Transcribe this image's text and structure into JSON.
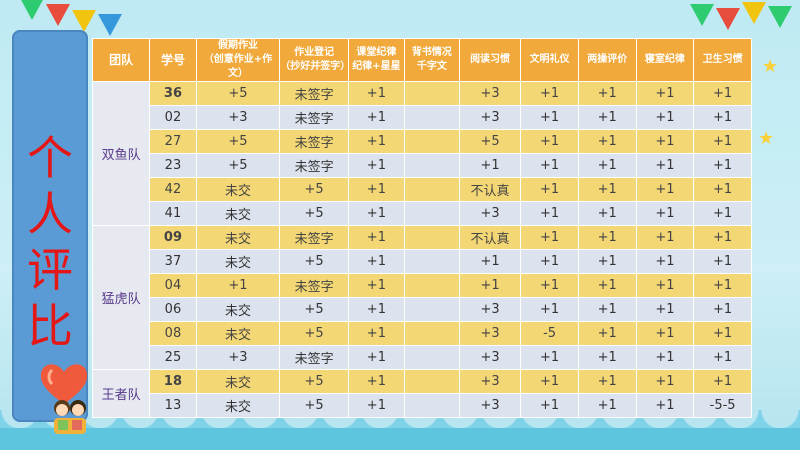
{
  "side_title": [
    "个",
    "人",
    "评",
    "比"
  ],
  "table": {
    "headers": [
      {
        "main": "团队",
        "sub": ""
      },
      {
        "main": "学号",
        "sub": ""
      },
      {
        "main": "假期作业",
        "sub": "（创意作业+作文）"
      },
      {
        "main": "作业登记",
        "sub": "（抄好并签字）"
      },
      {
        "main": "课堂纪律",
        "sub": "纪律+星星"
      },
      {
        "main": "背书情况",
        "sub": "千字文"
      },
      {
        "main": "阅读习惯",
        "sub": ""
      },
      {
        "main": "文明礼仪",
        "sub": ""
      },
      {
        "main": "两操评价",
        "sub": ""
      },
      {
        "main": "寝室纪律",
        "sub": ""
      },
      {
        "main": "卫生习惯",
        "sub": ""
      }
    ],
    "teams": [
      "双鱼队",
      "猛虎队",
      "王者队"
    ],
    "rows": [
      {
        "id": "36",
        "red": true,
        "cells": [
          "+5",
          "未签字",
          "+1",
          "",
          "+3",
          "+1",
          "+1",
          "+1",
          "+1"
        ]
      },
      {
        "id": "02",
        "red": false,
        "cells": [
          "+3",
          "未签字",
          "+1",
          "",
          "+3",
          "+1",
          "+1",
          "+1",
          "+1"
        ]
      },
      {
        "id": "27",
        "red": false,
        "cells": [
          "+5",
          "未签字",
          "+1",
          "",
          "+5",
          "+1",
          "+1",
          "+1",
          "+1"
        ]
      },
      {
        "id": "23",
        "red": false,
        "cells": [
          "+5",
          "未签字",
          "+1",
          "",
          "+1",
          "+1",
          "+1",
          "+1",
          "+1"
        ]
      },
      {
        "id": "42",
        "red": false,
        "cells": [
          "未交",
          "+5",
          "+1",
          "",
          "不认真",
          "+1",
          "+1",
          "+1",
          "+1"
        ]
      },
      {
        "id": "41",
        "red": false,
        "cells": [
          "未交",
          "+5",
          "+1",
          "",
          "+3",
          "+1",
          "+1",
          "+1",
          "+1"
        ]
      },
      {
        "id": "09",
        "red": true,
        "cells": [
          "未交",
          "未签字",
          "+1",
          "",
          "不认真",
          "+1",
          "+1",
          "+1",
          "+1"
        ]
      },
      {
        "id": "37",
        "red": false,
        "cells": [
          "未交",
          "+5",
          "+1",
          "",
          "+1",
          "+1",
          "+1",
          "+1",
          "+1"
        ]
      },
      {
        "id": "04",
        "red": false,
        "cells": [
          "+1",
          "未签字",
          "+1",
          "",
          "+1",
          "+1",
          "+1",
          "+1",
          "+1"
        ]
      },
      {
        "id": "06",
        "red": false,
        "cells": [
          "未交",
          "+5",
          "+1",
          "",
          "+3",
          "+1",
          "+1",
          "+1",
          "+1"
        ]
      },
      {
        "id": "08",
        "red": false,
        "cells": [
          "未交",
          "+5",
          "+1",
          "",
          "+3",
          "-5",
          "+1",
          "+1",
          "+1"
        ]
      },
      {
        "id": "25",
        "red": false,
        "cells": [
          "+3",
          "未签字",
          "+1",
          "",
          "+3",
          "+1",
          "+1",
          "+1",
          "+1"
        ]
      },
      {
        "id": "18",
        "red": true,
        "cells": [
          "未交",
          "+5",
          "+1",
          "",
          "+3",
          "+1",
          "+1",
          "+1",
          "+1"
        ]
      },
      {
        "id": "13",
        "red": false,
        "cells": [
          "未交",
          "+5",
          "+1",
          "",
          "+3",
          "+1",
          "+1",
          "+1",
          "-5-5"
        ]
      }
    ]
  },
  "colors": {
    "header": "#f0a93a",
    "row_yellow": "#f4d775",
    "row_gray": "#dde3ee",
    "side_panel": "#5b9bd5",
    "title_red": "#e41616"
  }
}
